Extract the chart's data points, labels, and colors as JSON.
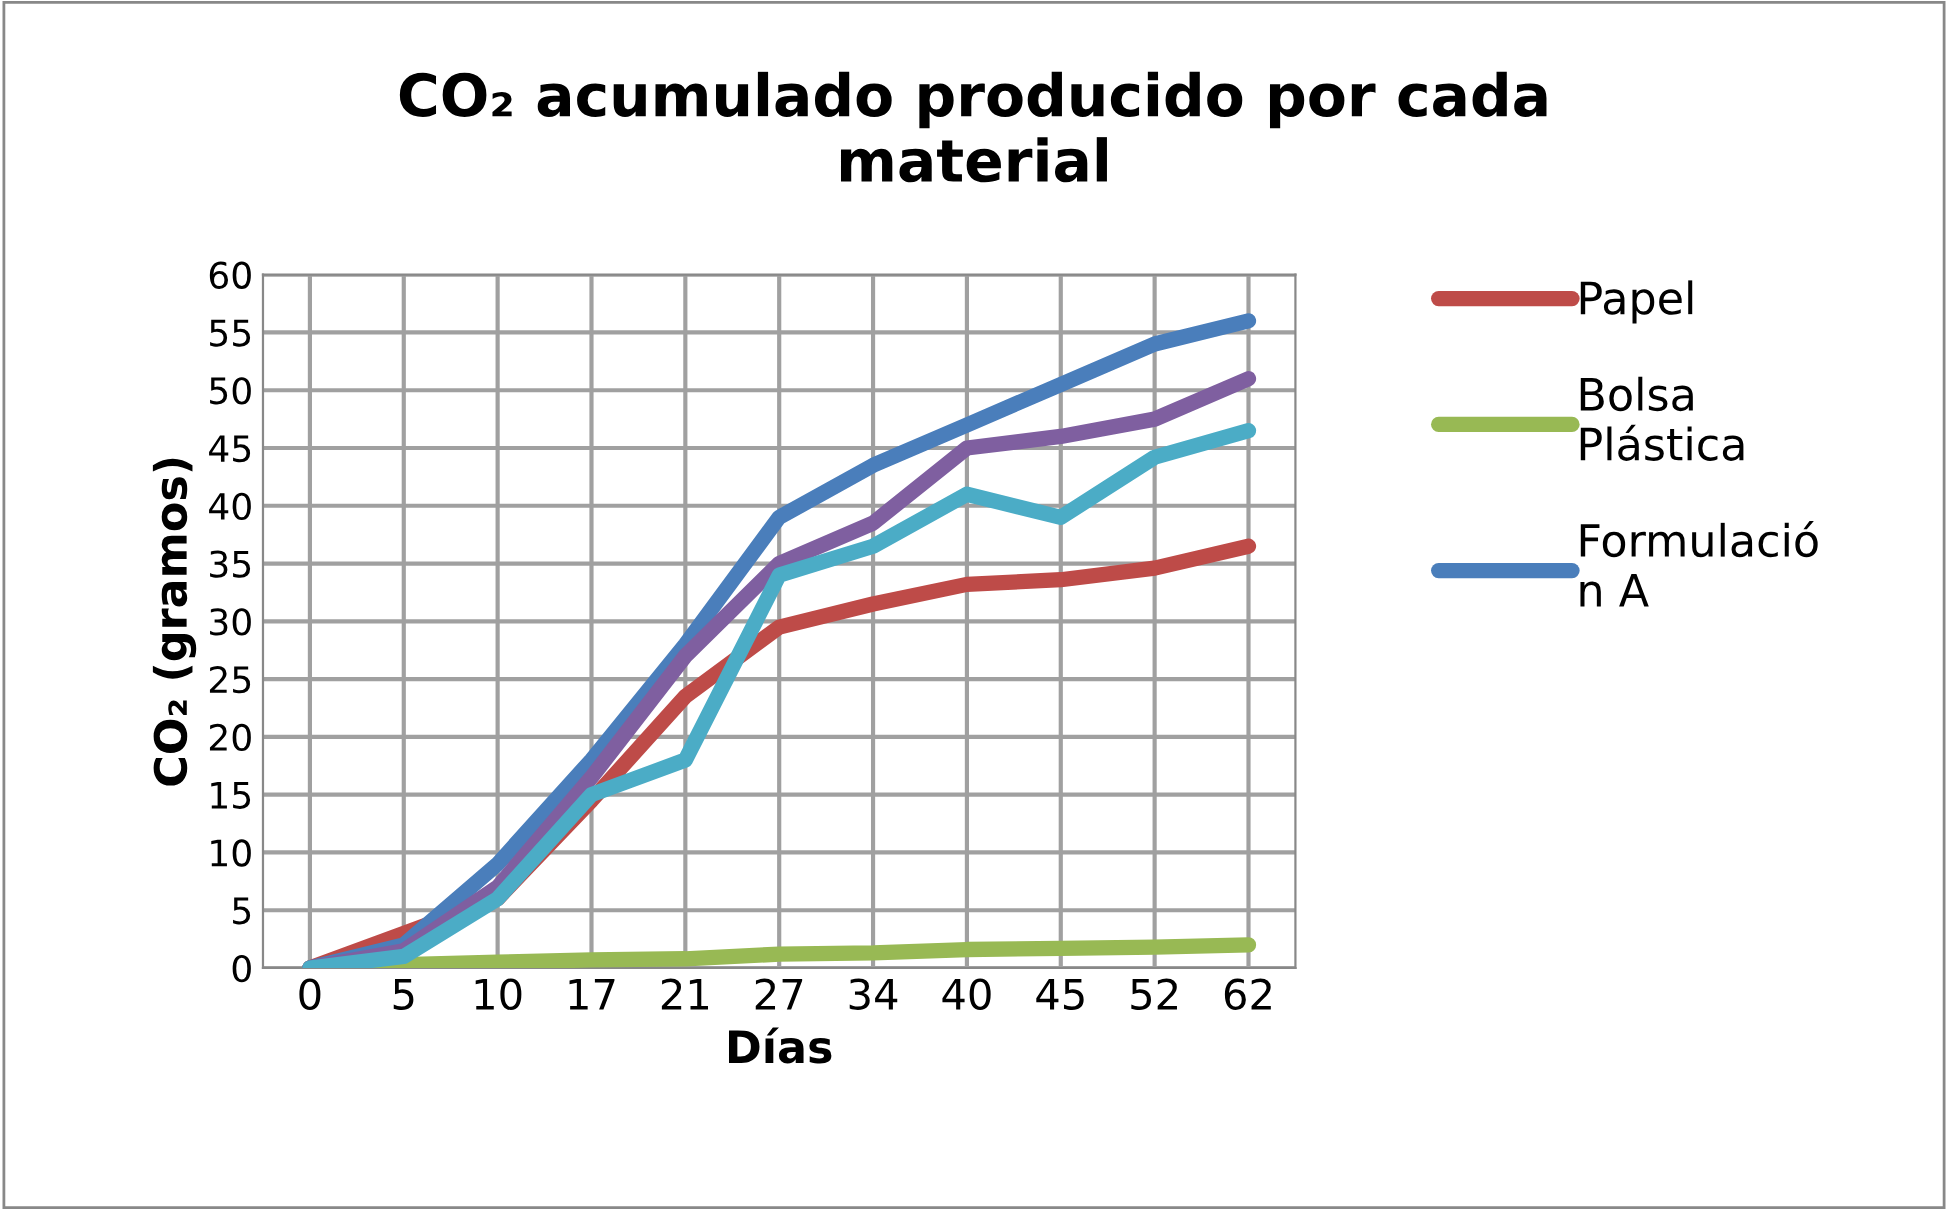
{
  "chart_data": {
    "type": "line",
    "title": "CO₂ acumulado producido por cada\nmaterial",
    "xlabel": "Días",
    "ylabel": "CO₂ (gramos)",
    "categories": [
      "0",
      "5",
      "10",
      "17",
      "21",
      "27",
      "34",
      "40",
      "45",
      "52",
      "62"
    ],
    "ylim": [
      0,
      60
    ],
    "yticks": [
      0,
      5,
      10,
      15,
      20,
      25,
      30,
      35,
      40,
      45,
      50,
      55,
      60
    ],
    "grid": true,
    "legend": "right",
    "marker": "none",
    "line_style": "solid",
    "series": [
      {
        "name": "Papel",
        "color": "#be4b48",
        "values": [
          0,
          3,
          6,
          14.5,
          23.5,
          29.5,
          31.5,
          33.2,
          33.6,
          34.6,
          36.5
        ]
      },
      {
        "name": "Bolsa\nPlástica",
        "color": "#98b954",
        "values": [
          0,
          0.3,
          0.5,
          0.7,
          0.8,
          1.2,
          1.3,
          1.6,
          1.7,
          1.8,
          2
        ]
      },
      {
        "name": "Formulació\nn A",
        "color": "#4a7ebb",
        "values": [
          0,
          2,
          9,
          18,
          28,
          39,
          43.5,
          47,
          50.5,
          54,
          56
        ]
      },
      {
        "color": "#7f5fa0",
        "values": [
          0,
          1.5,
          7,
          16.5,
          27,
          35,
          38.5,
          45,
          46,
          47.5,
          51
        ]
      },
      {
        "color": "#4bacc6",
        "values": [
          0,
          1,
          6,
          15,
          18,
          34,
          36.5,
          41,
          39,
          44.2,
          46.5
        ]
      }
    ]
  }
}
